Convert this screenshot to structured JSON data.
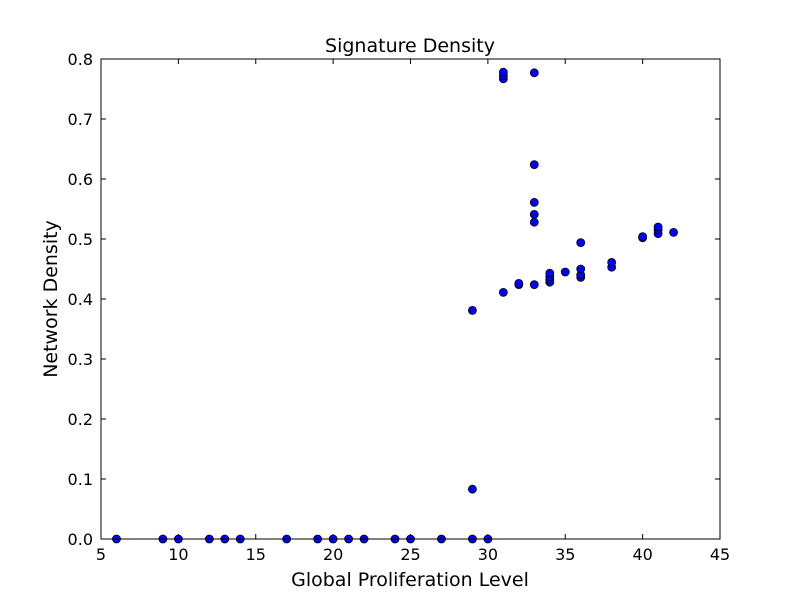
{
  "chart_data": {
    "type": "scatter",
    "title": "Signature Density",
    "xlabel": "Global Proliferation Level",
    "ylabel": "Network Density",
    "xlim": [
      5,
      45
    ],
    "ylim": [
      0.0,
      0.8
    ],
    "x_ticks": [
      5,
      10,
      15,
      20,
      25,
      30,
      35,
      40,
      45
    ],
    "y_ticks": [
      0.0,
      0.1,
      0.2,
      0.3,
      0.4,
      0.5,
      0.6,
      0.7,
      0.8
    ],
    "x_tick_labels": [
      "5",
      "10",
      "15",
      "20",
      "25",
      "30",
      "35",
      "40",
      "45"
    ],
    "y_tick_labels": [
      "0.0",
      "0.1",
      "0.2",
      "0.3",
      "0.4",
      "0.5",
      "0.6",
      "0.7",
      "0.8"
    ],
    "grid": false,
    "marker_color": "#0000ff",
    "marker_edge_color": "#000000",
    "points": [
      {
        "x": 6,
        "y": 0.0
      },
      {
        "x": 9,
        "y": 0.0
      },
      {
        "x": 10,
        "y": 0.0
      },
      {
        "x": 12,
        "y": 0.0
      },
      {
        "x": 13,
        "y": 0.0
      },
      {
        "x": 14,
        "y": 0.0
      },
      {
        "x": 17,
        "y": 0.0
      },
      {
        "x": 19,
        "y": 0.0
      },
      {
        "x": 20,
        "y": 0.0
      },
      {
        "x": 21,
        "y": 0.0
      },
      {
        "x": 22,
        "y": 0.0
      },
      {
        "x": 24,
        "y": 0.0
      },
      {
        "x": 25,
        "y": 0.0
      },
      {
        "x": 27,
        "y": 0.0
      },
      {
        "x": 29,
        "y": 0.0
      },
      {
        "x": 30,
        "y": 0.0
      },
      {
        "x": 29,
        "y": 0.083
      },
      {
        "x": 29,
        "y": 0.381
      },
      {
        "x": 31,
        "y": 0.411
      },
      {
        "x": 31,
        "y": 0.767
      },
      {
        "x": 31,
        "y": 0.772
      },
      {
        "x": 31,
        "y": 0.778
      },
      {
        "x": 32,
        "y": 0.424
      },
      {
        "x": 32,
        "y": 0.426
      },
      {
        "x": 33,
        "y": 0.424
      },
      {
        "x": 33,
        "y": 0.528
      },
      {
        "x": 33,
        "y": 0.541
      },
      {
        "x": 33,
        "y": 0.561
      },
      {
        "x": 33,
        "y": 0.624
      },
      {
        "x": 33,
        "y": 0.777
      },
      {
        "x": 34,
        "y": 0.428
      },
      {
        "x": 34,
        "y": 0.432
      },
      {
        "x": 34,
        "y": 0.437
      },
      {
        "x": 34,
        "y": 0.443
      },
      {
        "x": 35,
        "y": 0.445
      },
      {
        "x": 36,
        "y": 0.436
      },
      {
        "x": 36,
        "y": 0.44
      },
      {
        "x": 36,
        "y": 0.45
      },
      {
        "x": 36,
        "y": 0.494
      },
      {
        "x": 38,
        "y": 0.453
      },
      {
        "x": 38,
        "y": 0.461
      },
      {
        "x": 40,
        "y": 0.502
      },
      {
        "x": 40,
        "y": 0.504
      },
      {
        "x": 41,
        "y": 0.509
      },
      {
        "x": 41,
        "y": 0.515
      },
      {
        "x": 41,
        "y": 0.52
      },
      {
        "x": 42,
        "y": 0.511
      }
    ]
  }
}
